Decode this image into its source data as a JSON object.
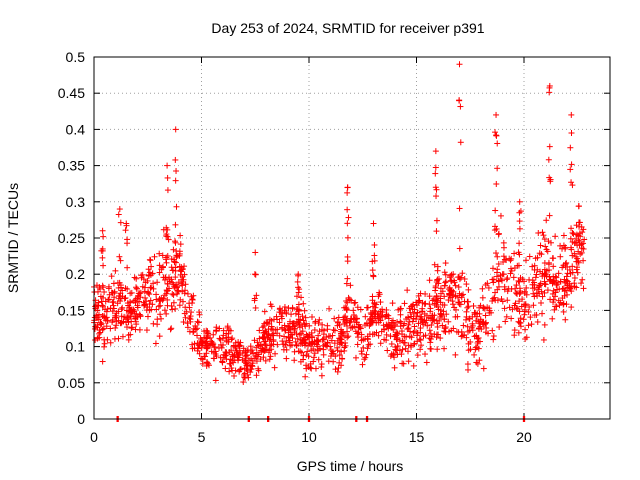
{
  "chart_data": {
    "type": "scatter",
    "title": "Day 253 of 2024, SRMTID for receiver p391",
    "xlabel": "GPS time / hours",
    "ylabel": "SRMTID / TECUs",
    "xlim": [
      0,
      24
    ],
    "ylim": [
      0,
      0.5
    ],
    "x_ticks": [
      0,
      5,
      10,
      15,
      20
    ],
    "y_ticks": [
      0,
      0.05,
      0.1,
      0.15,
      0.2,
      0.25,
      0.3,
      0.35,
      0.4,
      0.45,
      0.5
    ],
    "x_tick_labels": [
      "0",
      "5",
      "10",
      "15",
      "20"
    ],
    "y_tick_labels": [
      "0",
      "0.05",
      "0.1",
      "0.15",
      "0.2",
      "0.25",
      "0.3",
      "0.35",
      "0.4",
      "0.45",
      "0.5"
    ],
    "grid": true,
    "marker": "+",
    "color": "#ff0000",
    "series": [
      {
        "name": "SRMTID",
        "envelope_x": [
          0,
          0.5,
          1.0,
          1.5,
          2.0,
          2.5,
          3.0,
          3.5,
          4.0,
          4.5,
          5.0,
          5.5,
          6.0,
          6.5,
          7.0,
          7.5,
          8.0,
          8.5,
          9.0,
          9.5,
          10.0,
          10.5,
          11.0,
          11.5,
          12.0,
          12.5,
          13.0,
          13.5,
          14.0,
          14.5,
          15.0,
          15.5,
          16.0,
          16.5,
          17.0,
          17.5,
          18.0,
          18.5,
          19.0,
          19.5,
          20.0,
          20.5,
          21.0,
          21.5,
          22.0,
          22.5,
          22.8
        ],
        "envelope_center": [
          0.15,
          0.14,
          0.16,
          0.14,
          0.15,
          0.18,
          0.16,
          0.2,
          0.19,
          0.14,
          0.1,
          0.1,
          0.1,
          0.09,
          0.08,
          0.09,
          0.11,
          0.12,
          0.12,
          0.12,
          0.1,
          0.1,
          0.11,
          0.1,
          0.15,
          0.1,
          0.14,
          0.13,
          0.12,
          0.12,
          0.13,
          0.14,
          0.15,
          0.16,
          0.17,
          0.12,
          0.12,
          0.15,
          0.2,
          0.17,
          0.16,
          0.18,
          0.21,
          0.18,
          0.2,
          0.24,
          0.23
        ],
        "envelope_spread": [
          0.04,
          0.05,
          0.05,
          0.04,
          0.04,
          0.05,
          0.05,
          0.06,
          0.06,
          0.04,
          0.03,
          0.03,
          0.03,
          0.03,
          0.03,
          0.03,
          0.04,
          0.04,
          0.04,
          0.04,
          0.04,
          0.04,
          0.04,
          0.04,
          0.05,
          0.04,
          0.04,
          0.04,
          0.04,
          0.04,
          0.04,
          0.05,
          0.05,
          0.06,
          0.06,
          0.05,
          0.05,
          0.06,
          0.07,
          0.06,
          0.06,
          0.06,
          0.07,
          0.06,
          0.06,
          0.06,
          0.05
        ],
        "peaks": [
          {
            "x": 0.4,
            "y": 0.26
          },
          {
            "x": 1.2,
            "y": 0.29
          },
          {
            "x": 1.5,
            "y": 0.27
          },
          {
            "x": 2.6,
            "y": 0.22
          },
          {
            "x": 3.4,
            "y": 0.35
          },
          {
            "x": 3.8,
            "y": 0.4
          },
          {
            "x": 7.5,
            "y": 0.23
          },
          {
            "x": 9.5,
            "y": 0.2
          },
          {
            "x": 11.8,
            "y": 0.32
          },
          {
            "x": 13.0,
            "y": 0.27
          },
          {
            "x": 15.9,
            "y": 0.37
          },
          {
            "x": 17.0,
            "y": 0.49
          },
          {
            "x": 18.7,
            "y": 0.42
          },
          {
            "x": 19.8,
            "y": 0.3
          },
          {
            "x": 21.2,
            "y": 0.46
          },
          {
            "x": 22.2,
            "y": 0.42
          }
        ],
        "zero_points_x": [
          1.1,
          7.2,
          8.1,
          10.0,
          12.2,
          12.7,
          20.0
        ]
      }
    ]
  }
}
